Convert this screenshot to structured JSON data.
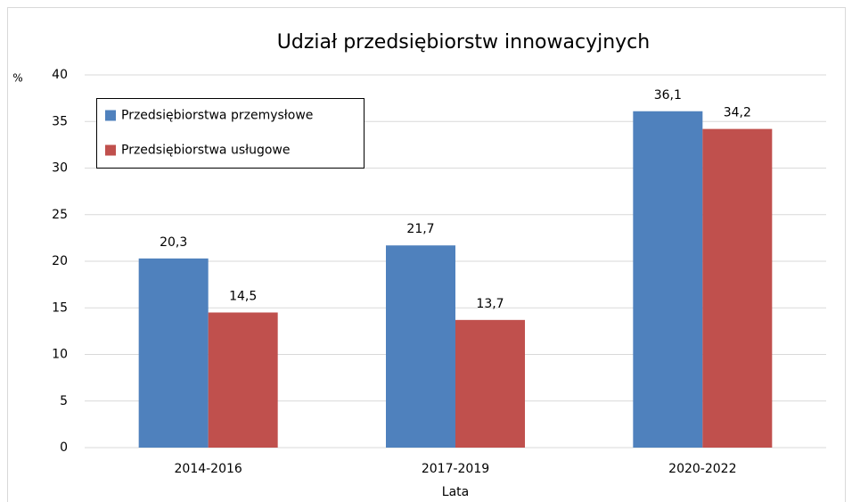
{
  "chart_data": {
    "type": "bar",
    "title": "Udział przedsiębiorstw innowacyjnych",
    "y_label": "%",
    "x_label": "Lata",
    "categories": [
      "2014-2016",
      "2017-2019",
      "2020-2022"
    ],
    "series": [
      {
        "name": "Przedsiębiorstwa przemysłowe",
        "color": "#4f81bd",
        "values": [
          20.3,
          21.7,
          36.1
        ],
        "value_labels": [
          "20,3",
          "21,7",
          "36,1"
        ]
      },
      {
        "name": "Przedsiębiorstwa usługowe",
        "color": "#c0504d",
        "values": [
          14.5,
          13.7,
          34.2
        ],
        "value_labels": [
          "14,5",
          "13,7",
          "34,2"
        ]
      }
    ],
    "ylim": [
      0,
      40
    ],
    "yticks": [
      0,
      5,
      10,
      15,
      20,
      25,
      30,
      35,
      40
    ],
    "grid": true,
    "legend": "upper left"
  }
}
